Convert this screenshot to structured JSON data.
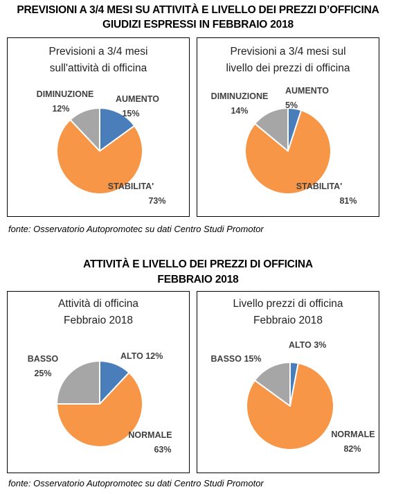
{
  "section1": {
    "title_line1": "PREVISIONI A 3/4 MESI SU ATTIVITÀ E LIVELLO DEI PREZZI D’OFFICINA",
    "title_line2": "GIUDIZI ESPRESSI IN FEBBRAIO 2018",
    "source": "fonte: Osservatorio Autopromotec su dati Centro Studi Promotor"
  },
  "section2": {
    "title_line1": "ATTIVITÀ E LIVELLO DEI PREZZI DI OFFICINA",
    "title_line2": "FEBBRAIO 2018",
    "source": "fonte: Osservatorio Autopromotec su dati Centro Studi Promotor"
  },
  "colors": {
    "blue": "#4a7ebb",
    "orange": "#f79646",
    "gray": "#a6a6a6"
  },
  "chart_data": [
    {
      "type": "pie",
      "title_line1": "Previsioni a 3/4 mesi",
      "title_line2": "sull'attività di officina",
      "slices": [
        {
          "name": "AUMENTO",
          "value": 15,
          "label": "15%",
          "color": "#4a7ebb"
        },
        {
          "name": "STABILITA'",
          "value": 73,
          "label": "73%",
          "color": "#f79646"
        },
        {
          "name": "DIMINUZIONE",
          "value": 12,
          "label": "12%",
          "color": "#a6a6a6"
        }
      ]
    },
    {
      "type": "pie",
      "title_line1": "Previsioni a 3/4 mesi sul",
      "title_line2": "livello dei prezzi di officina",
      "slices": [
        {
          "name": "AUMENTO",
          "value": 5,
          "label": "5%",
          "color": "#4a7ebb"
        },
        {
          "name": "STABILITA'",
          "value": 81,
          "label": "81%",
          "color": "#f79646"
        },
        {
          "name": "DIMINUZIONE",
          "value": 14,
          "label": "14%",
          "color": "#a6a6a6"
        }
      ]
    },
    {
      "type": "pie",
      "title_line1": "Attività di officina",
      "title_line2": "Febbraio 2018",
      "slices": [
        {
          "name": "ALTO",
          "value": 12,
          "label": "12%",
          "color": "#4a7ebb"
        },
        {
          "name": "NORMALE",
          "value": 63,
          "label": "63%",
          "color": "#f79646"
        },
        {
          "name": "BASSO",
          "value": 25,
          "label": "25%",
          "color": "#a6a6a6"
        }
      ]
    },
    {
      "type": "pie",
      "title_line1": "Livello prezzi di officina",
      "title_line2": "Febbraio 2018",
      "slices": [
        {
          "name": "ALTO",
          "value": 3,
          "label": "3%",
          "color": "#4a7ebb"
        },
        {
          "name": "NORMALE",
          "value": 82,
          "label": "82%",
          "color": "#f79646"
        },
        {
          "name": "BASSO",
          "value": 15,
          "label": "15%",
          "color": "#a6a6a6"
        }
      ]
    }
  ]
}
